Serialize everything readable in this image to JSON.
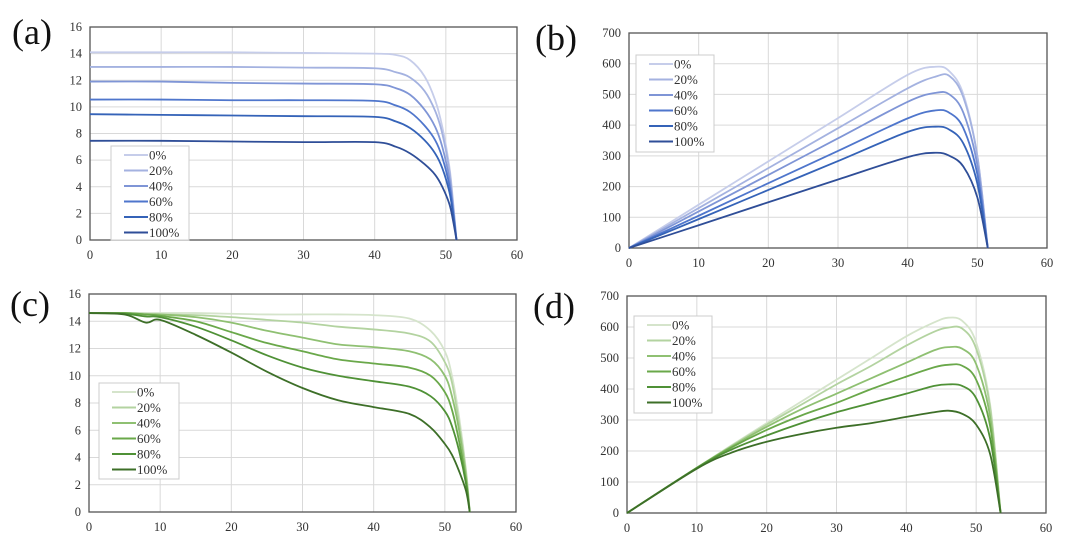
{
  "chart_data": [
    {
      "label": "(a)",
      "type": "line",
      "xlim": [
        0,
        60
      ],
      "xticks": [
        0,
        10,
        20,
        30,
        40,
        50,
        60
      ],
      "ylim": [
        0,
        16
      ],
      "yticks": [
        0,
        2,
        4,
        6,
        8,
        10,
        12,
        14,
        16
      ],
      "grid": true,
      "legend_position": "bottom-left",
      "x": [
        0,
        10,
        20,
        30,
        40,
        43,
        45,
        47,
        48.5,
        49.5,
        50.5,
        51,
        51.5
      ],
      "series": [
        {
          "name": "0%",
          "color": "#c6cdea",
          "values": [
            14.1,
            14.1,
            14.1,
            14.05,
            14.0,
            13.9,
            13.5,
            12.3,
            10.5,
            8.5,
            5.5,
            3,
            0
          ]
        },
        {
          "name": "20%",
          "color": "#a4b2e0",
          "values": [
            13.0,
            13.0,
            13.0,
            12.95,
            12.9,
            12.6,
            12.2,
            11.2,
            9.7,
            8,
            5.2,
            2.8,
            0
          ]
        },
        {
          "name": "40%",
          "color": "#7f95d6",
          "values": [
            11.9,
            11.9,
            11.8,
            11.75,
            11.7,
            11.4,
            10.9,
            9.8,
            8.5,
            7,
            4.6,
            2.5,
            0
          ]
        },
        {
          "name": "60%",
          "color": "#4f76cc",
          "values": [
            10.55,
            10.55,
            10.5,
            10.5,
            10.45,
            10.1,
            9.6,
            8.6,
            7.5,
            6.2,
            4.1,
            2.2,
            0
          ]
        },
        {
          "name": "80%",
          "color": "#3563b8",
          "values": [
            9.45,
            9.4,
            9.35,
            9.3,
            9.25,
            8.9,
            8.4,
            7.5,
            6.5,
            5.4,
            3.6,
            2,
            0
          ]
        },
        {
          "name": "100%",
          "color": "#2f4e98",
          "values": [
            7.45,
            7.45,
            7.4,
            7.35,
            7.35,
            7.0,
            6.5,
            5.7,
            4.9,
            4.0,
            2.7,
            1.5,
            0
          ]
        }
      ]
    },
    {
      "label": "(b)",
      "type": "line",
      "xlim": [
        0,
        60
      ],
      "xticks": [
        0,
        10,
        20,
        30,
        40,
        50,
        60
      ],
      "ylim": [
        0,
        700
      ],
      "yticks": [
        0,
        100,
        200,
        300,
        400,
        500,
        600,
        700
      ],
      "grid": true,
      "legend_position": "top-left",
      "x": [
        0,
        10,
        20,
        30,
        40,
        44,
        46,
        48,
        50,
        51.5
      ],
      "series": [
        {
          "name": "0%",
          "color": "#c6cdea",
          "values": [
            0,
            141,
            282,
            423,
            564,
            590,
            575,
            500,
            300,
            0
          ]
        },
        {
          "name": "20%",
          "color": "#a4b2e0",
          "values": [
            0,
            130,
            260,
            390,
            520,
            558,
            560,
            490,
            300,
            0
          ]
        },
        {
          "name": "40%",
          "color": "#7f95d6",
          "values": [
            0,
            119,
            238,
            357,
            476,
            505,
            500,
            440,
            270,
            0
          ]
        },
        {
          "name": "60%",
          "color": "#4f76cc",
          "values": [
            0,
            105,
            211,
            316,
            422,
            448,
            440,
            390,
            240,
            0
          ]
        },
        {
          "name": "80%",
          "color": "#3563b8",
          "values": [
            0,
            94,
            189,
            283,
            378,
            395,
            385,
            340,
            210,
            0
          ]
        },
        {
          "name": "100%",
          "color": "#2f4e98",
          "values": [
            0,
            74,
            149,
            223,
            296,
            310,
            300,
            265,
            165,
            0
          ]
        }
      ]
    },
    {
      "label": "(c)",
      "type": "line",
      "xlim": [
        0,
        60
      ],
      "xticks": [
        0,
        10,
        20,
        30,
        40,
        50,
        60
      ],
      "ylim": [
        0,
        16
      ],
      "yticks": [
        0,
        2,
        4,
        6,
        8,
        10,
        12,
        14,
        16
      ],
      "grid": true,
      "legend_position": "middle-left",
      "x": [
        0,
        5,
        8,
        10,
        15,
        20,
        25,
        30,
        35,
        40,
        45,
        48,
        50,
        51,
        52,
        53,
        53.5
      ],
      "series": [
        {
          "name": "0%",
          "color": "#d5e4cb",
          "values": [
            14.6,
            14.6,
            14.6,
            14.6,
            14.6,
            14.55,
            14.5,
            14.5,
            14.5,
            14.45,
            14.2,
            13.3,
            11.8,
            10,
            7,
            3,
            0
          ]
        },
        {
          "name": "20%",
          "color": "#b3d3a0",
          "values": [
            14.6,
            14.6,
            14.55,
            14.5,
            14.45,
            14.3,
            14.1,
            13.9,
            13.6,
            13.4,
            13.1,
            12.5,
            11,
            9.5,
            6.5,
            2.8,
            0
          ]
        },
        {
          "name": "40%",
          "color": "#8fc072",
          "values": [
            14.6,
            14.6,
            14.5,
            14.5,
            14.3,
            13.9,
            13.3,
            12.8,
            12.3,
            12.1,
            11.8,
            11.2,
            10,
            8.5,
            6,
            2.5,
            0
          ]
        },
        {
          "name": "60%",
          "color": "#6aa84a",
          "values": [
            14.6,
            14.6,
            14.5,
            14.4,
            14,
            13.2,
            12.4,
            11.8,
            11.2,
            10.9,
            10.6,
            10,
            8.8,
            7.5,
            5.2,
            2.2,
            0
          ]
        },
        {
          "name": "80%",
          "color": "#4f9136",
          "values": [
            14.6,
            14.55,
            14.35,
            14.3,
            13.6,
            12.6,
            11.5,
            10.6,
            10,
            9.6,
            9.2,
            8.5,
            7.4,
            6.3,
            4.5,
            2,
            0
          ]
        },
        {
          "name": "100%",
          "color": "#3d6f28",
          "values": [
            14.6,
            14.5,
            13.9,
            14.1,
            13,
            11.7,
            10.3,
            9.1,
            8.2,
            7.7,
            7.2,
            6.2,
            5,
            4.2,
            3,
            1.5,
            0
          ]
        }
      ]
    },
    {
      "label": "(d)",
      "type": "line",
      "xlim": [
        0,
        60
      ],
      "xticks": [
        0,
        10,
        20,
        30,
        40,
        50,
        60
      ],
      "ylim": [
        0,
        700
      ],
      "yticks": [
        0,
        100,
        200,
        300,
        400,
        500,
        600,
        700
      ],
      "grid": true,
      "legend_position": "top-left",
      "x": [
        0,
        10,
        15,
        20,
        25,
        30,
        35,
        40,
        44,
        46,
        48,
        50,
        52,
        53.5
      ],
      "series": [
        {
          "name": "0%",
          "color": "#d5e4cb",
          "values": [
            0,
            146,
            219,
            290,
            360,
            430,
            500,
            570,
            615,
            630,
            620,
            550,
            350,
            0
          ]
        },
        {
          "name": "20%",
          "color": "#b3d3a0",
          "values": [
            0,
            146,
            217,
            285,
            350,
            415,
            475,
            540,
            585,
            598,
            595,
            530,
            340,
            0
          ]
        },
        {
          "name": "40%",
          "color": "#8fc072",
          "values": [
            0,
            146,
            215,
            278,
            335,
            385,
            435,
            485,
            525,
            535,
            530,
            480,
            310,
            0
          ]
        },
        {
          "name": "60%",
          "color": "#6aa84a",
          "values": [
            0,
            146,
            212,
            268,
            315,
            355,
            400,
            440,
            470,
            478,
            475,
            430,
            280,
            0
          ]
        },
        {
          "name": "80%",
          "color": "#4f9136",
          "values": [
            0,
            145,
            205,
            250,
            290,
            325,
            355,
            385,
            410,
            415,
            410,
            370,
            240,
            0
          ]
        },
        {
          "name": "100%",
          "color": "#3d6f28",
          "values": [
            0,
            143,
            195,
            230,
            255,
            275,
            290,
            310,
            325,
            330,
            320,
            285,
            190,
            0
          ]
        }
      ]
    }
  ]
}
